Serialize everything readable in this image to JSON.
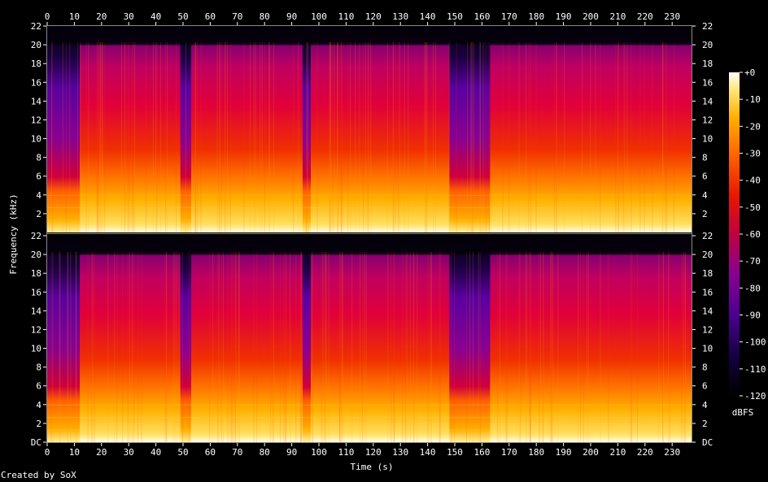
{
  "chart_data": {
    "type": "heatmap",
    "title": "",
    "xlabel": "Time (s)",
    "ylabel": "Frequency (kHz)",
    "xlim": [
      0,
      237
    ],
    "ylim_khz": [
      0,
      22
    ],
    "x_ticks": [
      "0",
      "10",
      "20",
      "30",
      "40",
      "50",
      "60",
      "70",
      "80",
      "90",
      "100",
      "110",
      "120",
      "130",
      "140",
      "150",
      "160",
      "170",
      "180",
      "190",
      "200",
      "210",
      "220",
      "230"
    ],
    "y_ticks_top": [
      "2",
      "4",
      "6",
      "8",
      "10",
      "12",
      "14",
      "16",
      "18",
      "20",
      "22"
    ],
    "y_ticks_bottom": [
      "DC",
      "2",
      "4",
      "6",
      "8",
      "10",
      "12",
      "14",
      "16",
      "18",
      "20",
      "22"
    ],
    "channels": [
      "Channel 1",
      "Channel 2"
    ],
    "colorbar": {
      "label": "dBFS",
      "ticks": [
        "+0",
        "-10",
        "-20",
        "-30",
        "-40",
        "-50",
        "-60",
        "-70",
        "-80",
        "-90",
        "-100",
        "-110",
        "-120"
      ],
      "range_db": [
        -120,
        0
      ]
    },
    "quiet_segments_s": [
      [
        0,
        12
      ],
      [
        49,
        53
      ],
      [
        94,
        97
      ],
      [
        148,
        163
      ]
    ],
    "bandwidth_limit_khz": 20,
    "grid": false
  },
  "footer": {
    "credit": "Created by SoX"
  }
}
